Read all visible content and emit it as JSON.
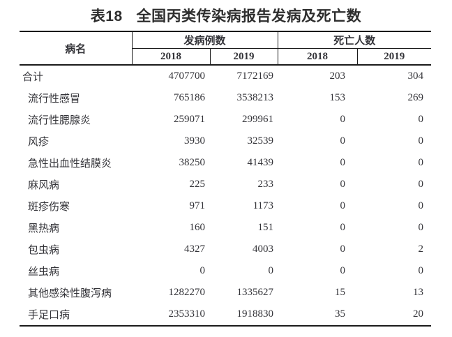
{
  "title": {
    "prefix": "表18",
    "text": "全国丙类传染病报告发病及死亡数"
  },
  "table": {
    "header": {
      "disease_col": "病名",
      "incidence_group": "发病例数",
      "deaths_group": "死亡人数",
      "years": [
        "2018",
        "2019",
        "2018",
        "2019"
      ]
    },
    "rows": [
      {
        "name": "合计",
        "total": true,
        "values": [
          "4707700",
          "7172169",
          "203",
          "304"
        ]
      },
      {
        "name": "流行性感冒",
        "total": false,
        "values": [
          "765186",
          "3538213",
          "153",
          "269"
        ]
      },
      {
        "name": "流行性腮腺炎",
        "total": false,
        "values": [
          "259071",
          "299961",
          "0",
          "0"
        ]
      },
      {
        "name": "风疹",
        "total": false,
        "values": [
          "3930",
          "32539",
          "0",
          "0"
        ]
      },
      {
        "name": "急性出血性结膜炎",
        "total": false,
        "values": [
          "38250",
          "41439",
          "0",
          "0"
        ]
      },
      {
        "name": "麻风病",
        "total": false,
        "values": [
          "225",
          "233",
          "0",
          "0"
        ]
      },
      {
        "name": "斑疹伤寒",
        "total": false,
        "values": [
          "971",
          "1173",
          "0",
          "0"
        ]
      },
      {
        "name": "黑热病",
        "total": false,
        "values": [
          "160",
          "151",
          "0",
          "0"
        ]
      },
      {
        "name": "包虫病",
        "total": false,
        "values": [
          "4327",
          "4003",
          "0",
          "2"
        ]
      },
      {
        "name": "丝虫病",
        "total": false,
        "values": [
          "0",
          "0",
          "0",
          "0"
        ]
      },
      {
        "name": "其他感染性腹泻病",
        "total": false,
        "values": [
          "1282270",
          "1335627",
          "15",
          "13"
        ]
      },
      {
        "name": "手足口病",
        "total": false,
        "values": [
          "2353310",
          "1918830",
          "35",
          "20"
        ]
      }
    ]
  },
  "colors": {
    "text": "#333338",
    "border": "#1a1a1a",
    "title": "#2e2e2e",
    "background": "#ffffff"
  }
}
